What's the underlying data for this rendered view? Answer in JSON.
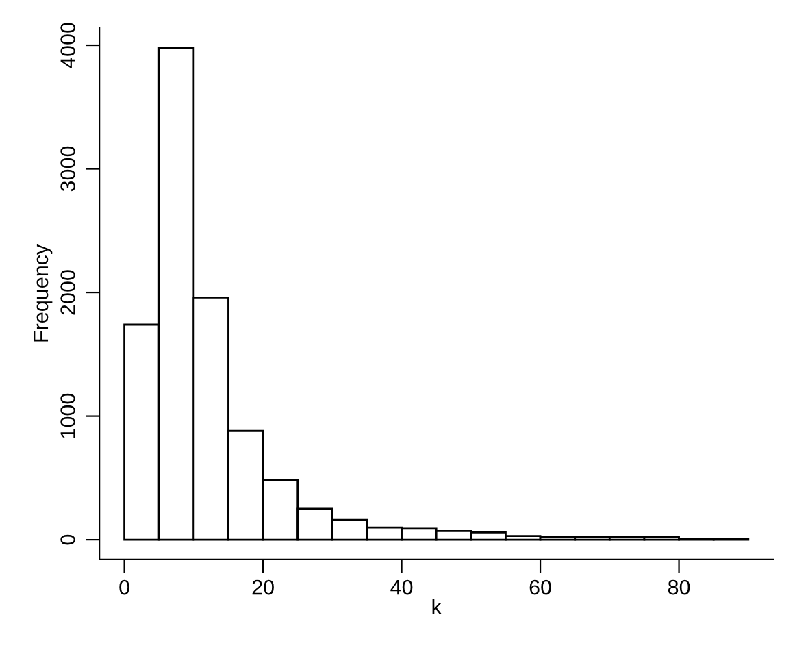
{
  "chart_data": {
    "type": "histogram",
    "xlabel": "k",
    "ylabel": "Frequency",
    "bins": [
      0,
      5,
      10,
      15,
      20,
      25,
      30,
      35,
      40,
      45,
      50,
      55,
      60,
      65,
      70,
      75,
      80,
      85,
      90
    ],
    "values": [
      1740,
      3980,
      1960,
      880,
      480,
      250,
      160,
      100,
      90,
      70,
      60,
      30,
      20,
      20,
      20,
      20,
      10,
      10
    ],
    "color": "#ffffff",
    "xlim": [
      -3.6,
      93.6
    ],
    "ylim": [
      -159,
      4139
    ],
    "xticks": [
      0,
      20,
      40,
      60,
      80
    ],
    "yticks": [
      0,
      1000,
      2000,
      3000,
      4000
    ],
    "grid": false
  }
}
